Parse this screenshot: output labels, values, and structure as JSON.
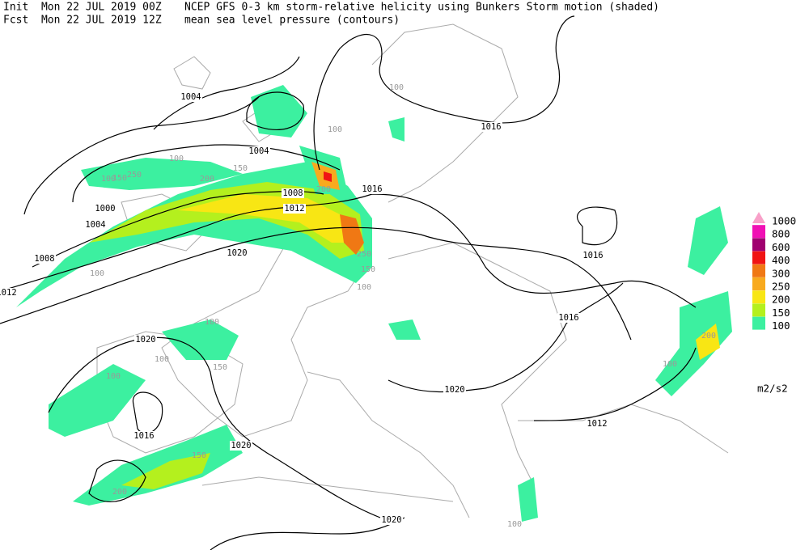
{
  "header": {
    "init": "Init  Mon 22 JUL 2019 00Z",
    "fcst": "Fcst  Mon 22 JUL 2019 12Z",
    "title": "NCEP GFS 0-3 km storm-relative helicity using Bunkers Storm motion (shaded)",
    "subtitle": "mean sea level pressure (contours)"
  },
  "legend": {
    "unit": "m2/s2",
    "levels": [
      {
        "label": "1000",
        "color": "#f8a0c8"
      },
      {
        "label": "800",
        "color": "#f010b4"
      },
      {
        "label": "600",
        "color": "#a00070"
      },
      {
        "label": "400",
        "color": "#f01414"
      },
      {
        "label": "300",
        "color": "#f07814"
      },
      {
        "label": "250",
        "color": "#f8aa1e"
      },
      {
        "label": "200",
        "color": "#f8e614"
      },
      {
        "label": "150",
        "color": "#b4f01e"
      },
      {
        "label": "100",
        "color": "#3cf0a0"
      }
    ]
  },
  "contour_labels": [
    "1004",
    "1004",
    "1004",
    "1000",
    "1008",
    "1012",
    "1016",
    "1016",
    "1016",
    "1016",
    "1020",
    "1020",
    "1020",
    "1020",
    "1020",
    "1016",
    "1012",
    "1008",
    "1012"
  ],
  "shade_labels": [
    "100",
    "150",
    "250",
    "200",
    "150",
    "100",
    "200",
    "250",
    "150",
    "100",
    "100",
    "100",
    "100",
    "150",
    "100",
    "200",
    "150",
    "100",
    "100",
    "100",
    "200",
    "100"
  ]
}
